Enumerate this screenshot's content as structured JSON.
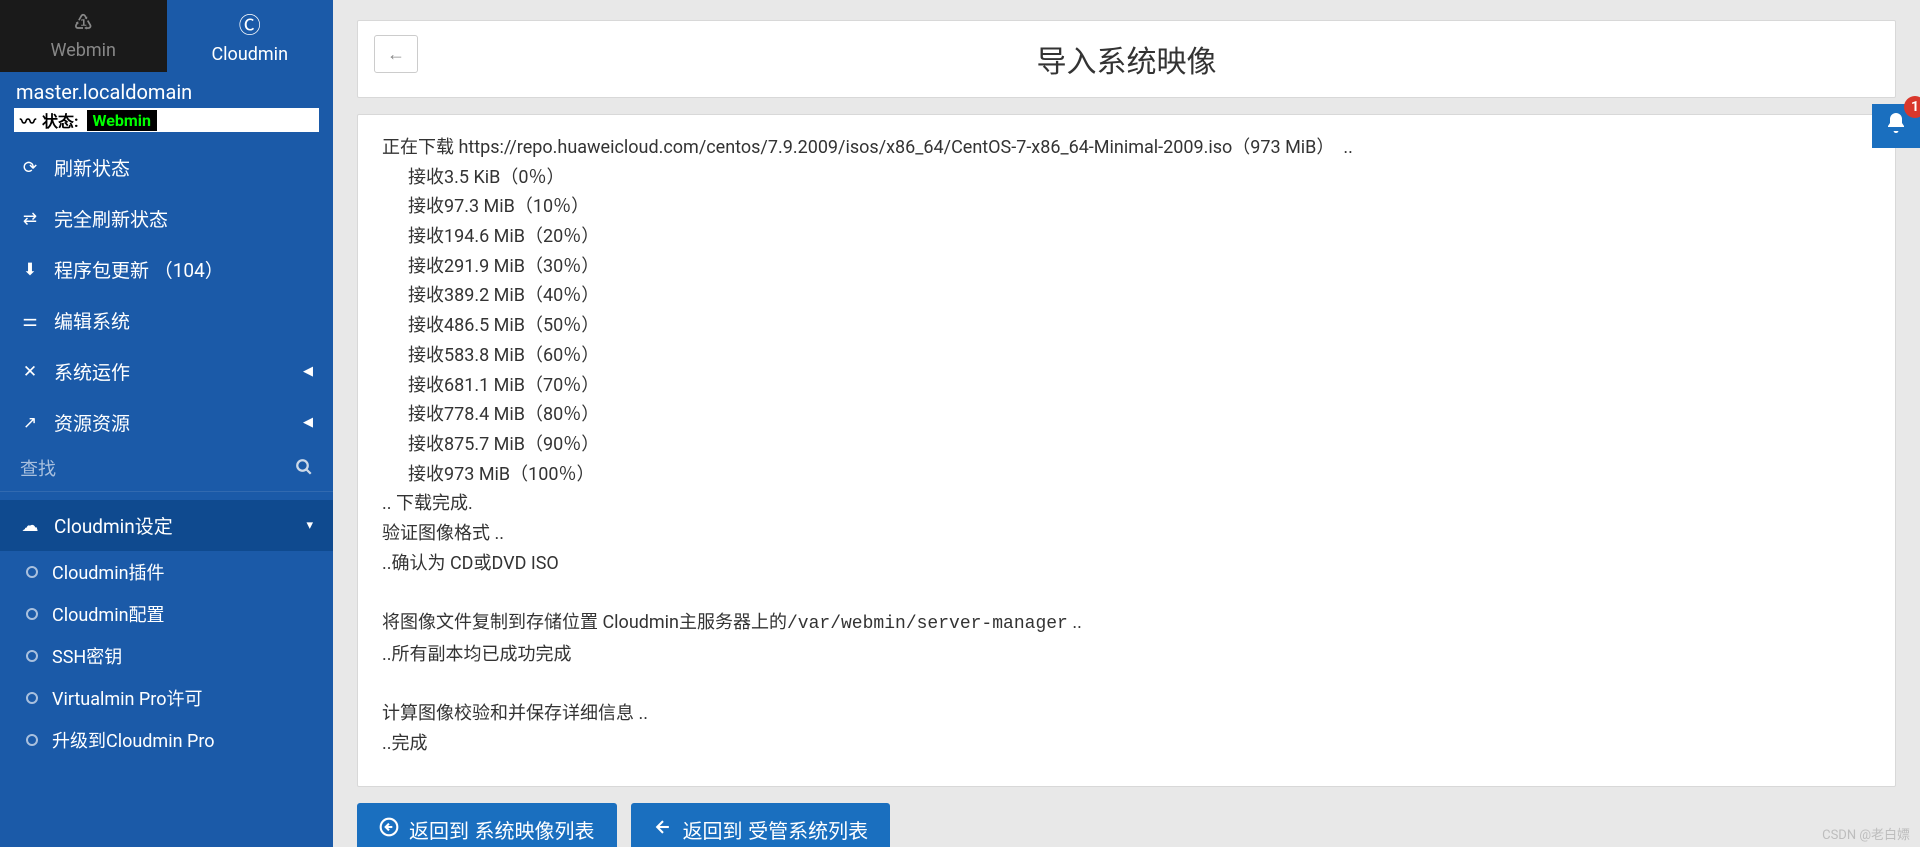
{
  "tabs": {
    "webmin": "Webmin",
    "cloudmin": "Cloudmin"
  },
  "hostname": "master.localdomain",
  "status": {
    "label": "状态:",
    "value": "Webmin"
  },
  "nav": {
    "refresh": "刷新状态",
    "full_refresh": "完全刷新状态",
    "updates": "程序包更新 （104）",
    "edit_system": "编辑系统",
    "system_operation": "系统运作",
    "resources": "资源资源",
    "cloudmin_settings": "Cloudmin设定"
  },
  "search": {
    "placeholder": "查找"
  },
  "sub": {
    "plugins": "Cloudmin插件",
    "config": "Cloudmin配置",
    "ssh": "SSH密钥",
    "virtualmin": "Virtualmin Pro许可",
    "upgrade": "升级到Cloudmin Pro"
  },
  "page": {
    "title": "导入系统映像",
    "download_prefix": "正在下载 ",
    "download_url": "https://repo.huaweicloud.com/centos/7.9.2009/isos/x86_64/CentOS-7-x86_64-Minimal-2009.iso",
    "download_size": "（973 MiB）  ..",
    "progress": [
      "接收3.5 KiB（0％）",
      "接收97.3 MiB（10％）",
      "接收194.6 MiB（20％）",
      "接收291.9 MiB（30％）",
      "接收389.2 MiB（40％）",
      "接收486.5 MiB（50％）",
      "接收583.8 MiB（60％）",
      "接收681.1 MiB（70％）",
      "接收778.4 MiB（80％）",
      "接收875.7 MiB（90％）",
      "接收973 MiB（100％）"
    ],
    "download_done": ".. 下载完成.",
    "verify": "验证图像格式 ..",
    "verify_done": "..确认为 CD或DVD ISO",
    "copy_prefix": "将图像文件复制到存储位置 Cloudmin主服务器上的",
    "copy_path": "/var/webmin/server-manager",
    "copy_suffix": " ..",
    "copy_done": "..所有副本均已成功完成",
    "checksum": "计算图像校验和并保存详细信息 ..",
    "checksum_done": "..完成"
  },
  "buttons": {
    "back_images": "返回到 系统映像列表",
    "back_managed": "返回到 受管系统列表"
  },
  "notif": {
    "count": "1"
  },
  "watermark": "CSDN @老白嫖"
}
